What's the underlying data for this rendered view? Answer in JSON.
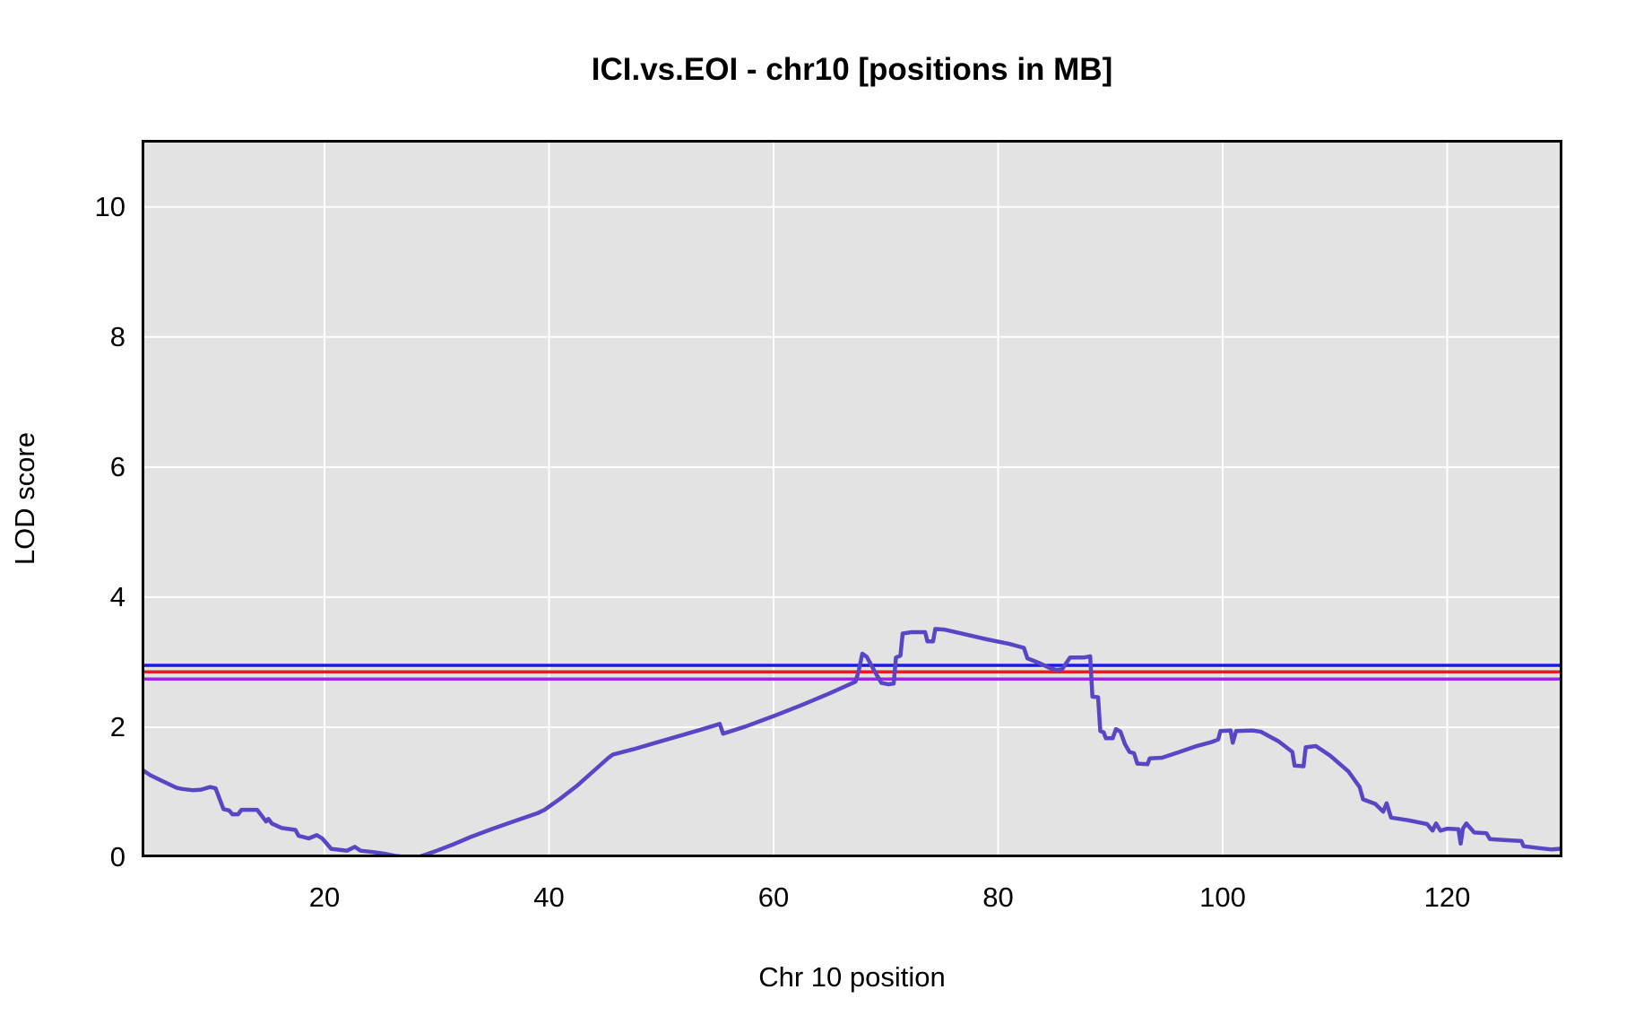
{
  "chart_data": {
    "type": "line",
    "title": "ICI.vs.EOI - chr10 [positions in MB]",
    "xlabel": "Chr 10 position",
    "ylabel": "LOD score",
    "xlim": [
      3.71,
      130.26
    ],
    "ylim": [
      0,
      11.03
    ],
    "xticks": [
      20,
      40,
      60,
      80,
      100,
      120
    ],
    "yticks": [
      0,
      2,
      4,
      6,
      8,
      10
    ],
    "grid": true,
    "legend": "none",
    "plot_bg": "#e3e3e3",
    "grid_color": "#ffffff",
    "border_color": "#000000",
    "threshold_lines": [
      {
        "name": "blue-threshold",
        "color": "#1b1be0",
        "y": 2.95
      },
      {
        "name": "red-threshold",
        "color": "#e81c1c",
        "y": 2.85
      },
      {
        "name": "purple-threshold",
        "color": "#a122e8",
        "y": 2.74
      }
    ],
    "series": [
      {
        "name": "LOD curve",
        "color": "#5847c5",
        "points": [
          [
            3.71,
            1.35
          ],
          [
            4.5,
            1.26
          ],
          [
            5.7,
            1.16
          ],
          [
            6.8,
            1.07
          ],
          [
            7.3,
            1.05
          ],
          [
            8.3,
            1.03
          ],
          [
            9.0,
            1.04
          ],
          [
            9.8,
            1.08
          ],
          [
            10.3,
            1.06
          ],
          [
            11.0,
            0.74
          ],
          [
            11.5,
            0.72
          ],
          [
            11.8,
            0.66
          ],
          [
            12.3,
            0.66
          ],
          [
            12.6,
            0.73
          ],
          [
            14.0,
            0.73
          ],
          [
            14.8,
            0.55
          ],
          [
            15.0,
            0.59
          ],
          [
            15.3,
            0.52
          ],
          [
            16.2,
            0.45
          ],
          [
            17.4,
            0.42
          ],
          [
            17.7,
            0.33
          ],
          [
            18.6,
            0.29
          ],
          [
            19.3,
            0.34
          ],
          [
            19.8,
            0.29
          ],
          [
            20.6,
            0.13
          ],
          [
            22.0,
            0.1
          ],
          [
            22.7,
            0.16
          ],
          [
            23.2,
            0.1
          ],
          [
            24.3,
            0.08
          ],
          [
            25.5,
            0.05
          ],
          [
            26.3,
            0.02
          ],
          [
            27.5,
            0.0
          ],
          [
            28.5,
            0.01
          ],
          [
            30.0,
            0.1
          ],
          [
            31.5,
            0.2
          ],
          [
            33.0,
            0.31
          ],
          [
            35.0,
            0.44
          ],
          [
            37.0,
            0.56
          ],
          [
            39.0,
            0.68
          ],
          [
            39.6,
            0.73
          ],
          [
            41.0,
            0.9
          ],
          [
            42.5,
            1.1
          ],
          [
            44.0,
            1.33
          ],
          [
            45.3,
            1.53
          ],
          [
            45.7,
            1.58
          ],
          [
            47.5,
            1.66
          ],
          [
            49.5,
            1.76
          ],
          [
            51.5,
            1.86
          ],
          [
            53.5,
            1.96
          ],
          [
            55.2,
            2.05
          ],
          [
            55.5,
            1.9
          ],
          [
            57.5,
            2.01
          ],
          [
            60.0,
            2.17
          ],
          [
            62.5,
            2.34
          ],
          [
            65.0,
            2.52
          ],
          [
            67.3,
            2.7
          ],
          [
            67.6,
            2.88
          ],
          [
            67.9,
            3.13
          ],
          [
            68.3,
            3.08
          ],
          [
            69.0,
            2.86
          ],
          [
            69.6,
            2.68
          ],
          [
            70.2,
            2.66
          ],
          [
            70.7,
            2.67
          ],
          [
            70.9,
            3.07
          ],
          [
            71.3,
            3.1
          ],
          [
            71.5,
            3.44
          ],
          [
            72.3,
            3.46
          ],
          [
            73.5,
            3.46
          ],
          [
            73.7,
            3.32
          ],
          [
            74.2,
            3.32
          ],
          [
            74.4,
            3.51
          ],
          [
            75.2,
            3.5
          ],
          [
            77.0,
            3.43
          ],
          [
            79.0,
            3.35
          ],
          [
            81.0,
            3.28
          ],
          [
            82.3,
            3.22
          ],
          [
            82.6,
            3.06
          ],
          [
            83.6,
            2.99
          ],
          [
            84.6,
            2.91
          ],
          [
            85.2,
            2.88
          ],
          [
            85.7,
            2.89
          ],
          [
            86.4,
            3.07
          ],
          [
            87.6,
            3.07
          ],
          [
            88.2,
            3.09
          ],
          [
            88.4,
            2.47
          ],
          [
            88.9,
            2.46
          ],
          [
            89.1,
            1.94
          ],
          [
            89.4,
            1.92
          ],
          [
            89.6,
            1.83
          ],
          [
            90.2,
            1.83
          ],
          [
            90.5,
            1.97
          ],
          [
            90.9,
            1.93
          ],
          [
            91.3,
            1.74
          ],
          [
            91.7,
            1.62
          ],
          [
            92.1,
            1.6
          ],
          [
            92.4,
            1.44
          ],
          [
            93.3,
            1.43
          ],
          [
            93.5,
            1.52
          ],
          [
            94.6,
            1.53
          ],
          [
            96.0,
            1.61
          ],
          [
            97.5,
            1.7
          ],
          [
            99.0,
            1.77
          ],
          [
            99.6,
            1.81
          ],
          [
            99.8,
            1.94
          ],
          [
            100.7,
            1.95
          ],
          [
            100.9,
            1.76
          ],
          [
            101.2,
            1.94
          ],
          [
            102.6,
            1.95
          ],
          [
            103.4,
            1.93
          ],
          [
            105.0,
            1.78
          ],
          [
            106.2,
            1.62
          ],
          [
            106.4,
            1.41
          ],
          [
            107.2,
            1.4
          ],
          [
            107.4,
            1.69
          ],
          [
            108.3,
            1.71
          ],
          [
            109.6,
            1.56
          ],
          [
            111.2,
            1.32
          ],
          [
            112.2,
            1.08
          ],
          [
            112.5,
            0.89
          ],
          [
            113.6,
            0.82
          ],
          [
            114.3,
            0.7
          ],
          [
            114.6,
            0.83
          ],
          [
            115.0,
            0.61
          ],
          [
            116.5,
            0.57
          ],
          [
            118.2,
            0.51
          ],
          [
            118.7,
            0.41
          ],
          [
            119.0,
            0.52
          ],
          [
            119.4,
            0.41
          ],
          [
            120.0,
            0.44
          ],
          [
            121.0,
            0.43
          ],
          [
            121.2,
            0.21
          ],
          [
            121.4,
            0.44
          ],
          [
            121.7,
            0.52
          ],
          [
            122.4,
            0.38
          ],
          [
            123.5,
            0.37
          ],
          [
            123.8,
            0.28
          ],
          [
            125.5,
            0.26
          ],
          [
            126.6,
            0.25
          ],
          [
            126.8,
            0.17
          ],
          [
            128.2,
            0.14
          ],
          [
            129.3,
            0.12
          ],
          [
            130.0,
            0.13
          ],
          [
            130.26,
            0.15
          ]
        ]
      }
    ]
  }
}
